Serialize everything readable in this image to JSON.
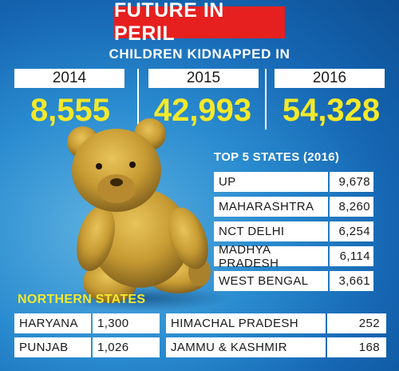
{
  "title": "FUTURE IN PERIL",
  "colors": {
    "banner": "#e5201f",
    "accent_yellow": "#f3e92a",
    "background": "#1565b2"
  },
  "chart_data": {
    "type": "table",
    "subtitle": "CHILDREN KIDNAPPED IN",
    "years": [
      {
        "year": "2014",
        "value": "8,555"
      },
      {
        "year": "2015",
        "value": "42,993"
      },
      {
        "year": "2016",
        "value": "54,328"
      }
    ],
    "top_states_title": "TOP 5 STATES (2016)",
    "top_states": [
      {
        "name": "UP",
        "value": "9,678"
      },
      {
        "name": "MAHARASHTRA",
        "value": "8,260"
      },
      {
        "name": "NCT DELHI",
        "value": "6,254"
      },
      {
        "name": "MADHYA PRADESH",
        "value": "6,114"
      },
      {
        "name": "WEST BENGAL",
        "value": "3,661"
      }
    ],
    "northern_title": "NORTHERN STATES",
    "northern_states": [
      {
        "name": "HARYANA",
        "value": "1,300"
      },
      {
        "name": "PUNJAB",
        "value": "1,026"
      },
      {
        "name": "HIMACHAL PRADESH",
        "value": "252"
      },
      {
        "name": "JAMMU & KASHMIR",
        "value": "168"
      }
    ]
  }
}
